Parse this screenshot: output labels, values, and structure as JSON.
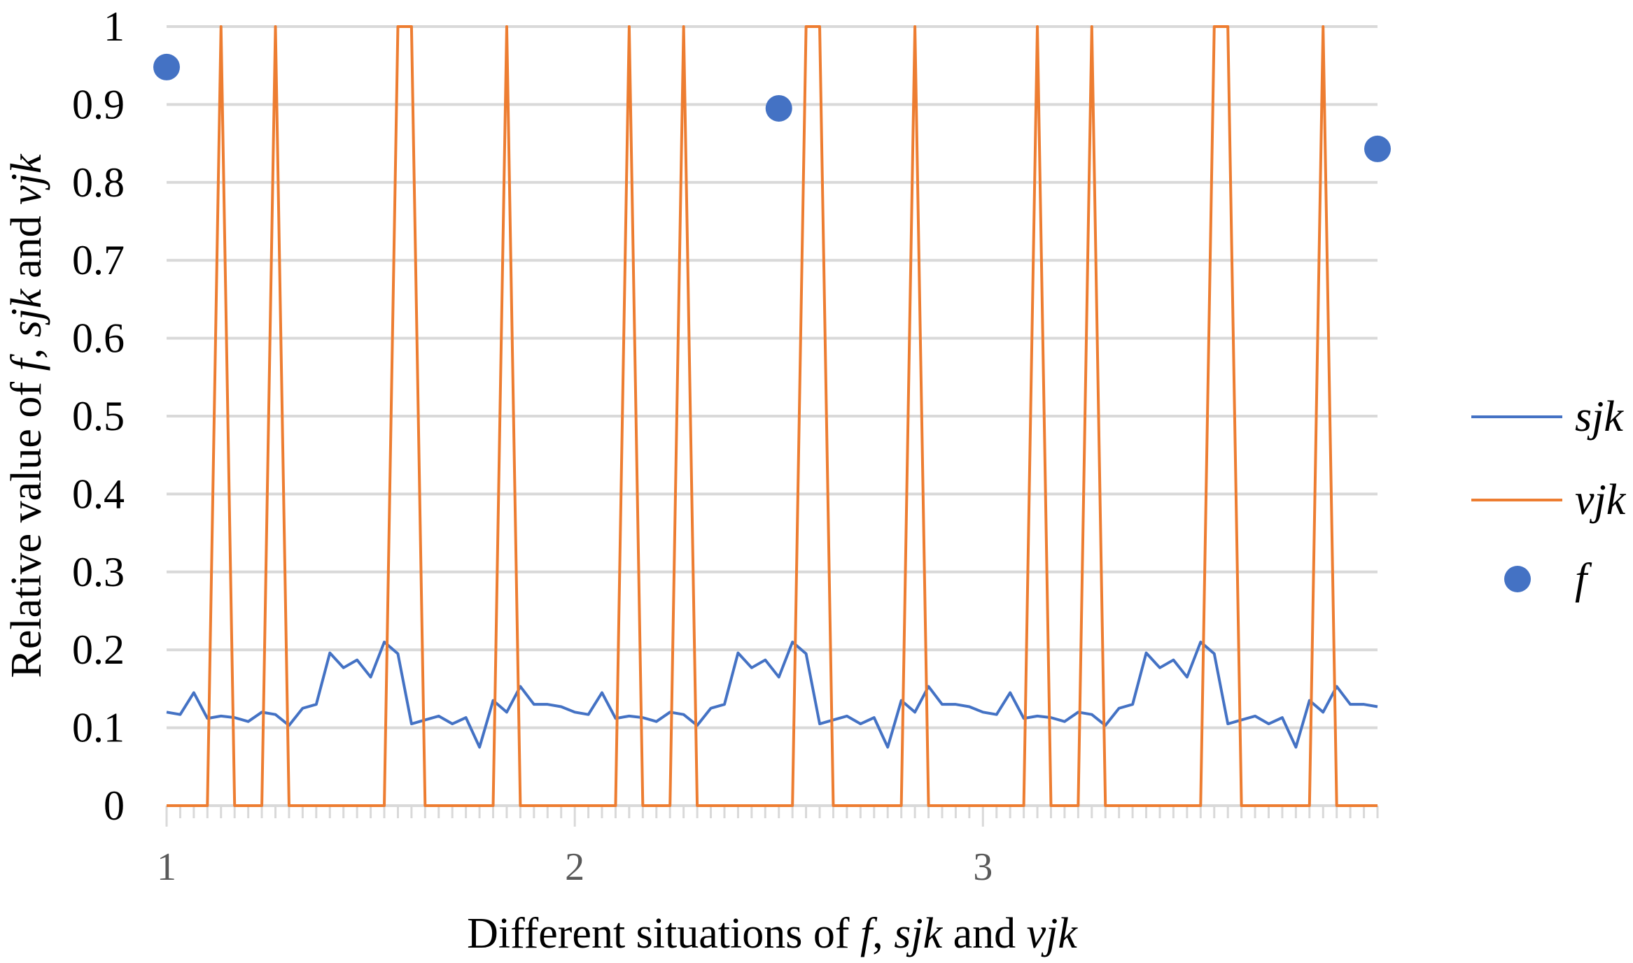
{
  "chart_data": {
    "type": "line",
    "xlabel_parts": [
      "Different situations of ",
      "f",
      ", ",
      "sjk",
      " and ",
      "vjk"
    ],
    "ylabel_parts": [
      "Relative value of ",
      "f",
      ", ",
      "sjk",
      " and ",
      "vjk"
    ],
    "ylim": [
      0,
      1
    ],
    "yticks": [
      "0",
      "0.1",
      "0.2",
      "0.3",
      "0.4",
      "0.5",
      "0.6",
      "0.7",
      "0.8",
      "0.9",
      "1"
    ],
    "xticks": [
      "1",
      "2",
      "3"
    ],
    "grid": true,
    "legend_position": "right",
    "n_points": 90,
    "points_per_situation": 30,
    "series": [
      {
        "name": "sjk",
        "type": "line",
        "color": "#4472C4",
        "values": [
          0.12,
          0.117,
          0.145,
          0.112,
          0.115,
          0.113,
          0.108,
          0.12,
          0.117,
          0.103,
          0.125,
          0.13,
          0.196,
          0.177,
          0.187,
          0.165,
          0.21,
          0.195,
          0.105,
          0.11,
          0.115,
          0.105,
          0.113,
          0.075,
          0.135,
          0.12,
          0.153,
          0.13,
          0.13,
          0.127,
          0.12,
          0.117,
          0.145,
          0.112,
          0.115,
          0.113,
          0.108,
          0.12,
          0.117,
          0.103,
          0.125,
          0.13,
          0.196,
          0.177,
          0.187,
          0.165,
          0.21,
          0.195,
          0.105,
          0.11,
          0.115,
          0.105,
          0.113,
          0.075,
          0.135,
          0.12,
          0.153,
          0.13,
          0.13,
          0.127,
          0.12,
          0.117,
          0.145,
          0.112,
          0.115,
          0.113,
          0.108,
          0.12,
          0.117,
          0.103,
          0.125,
          0.13,
          0.196,
          0.177,
          0.187,
          0.165,
          0.21,
          0.195,
          0.105,
          0.11,
          0.115,
          0.105,
          0.113,
          0.075,
          0.135,
          0.12,
          0.153,
          0.13,
          0.13,
          0.127
        ]
      },
      {
        "name": "vjk",
        "type": "line",
        "color": "#ED7D31",
        "values": [
          0,
          0,
          0,
          0,
          1,
          0,
          0,
          0,
          1,
          0,
          0,
          0,
          0,
          0,
          0,
          0,
          0,
          1,
          1,
          0,
          0,
          0,
          0,
          0,
          0,
          1,
          0,
          0,
          0,
          0,
          0,
          0,
          0,
          0,
          1,
          0,
          0,
          0,
          1,
          0,
          0,
          0,
          0,
          0,
          0,
          0,
          0,
          1,
          1,
          0,
          0,
          0,
          0,
          0,
          0,
          1,
          0,
          0,
          0,
          0,
          0,
          0,
          0,
          0,
          1,
          0,
          0,
          0,
          1,
          0,
          0,
          0,
          0,
          0,
          0,
          0,
          0,
          1,
          1,
          0,
          0,
          0,
          0,
          0,
          0,
          1,
          0,
          0,
          0,
          0
        ]
      },
      {
        "name": "f",
        "type": "scatter",
        "color": "#4472C4",
        "x_index": [
          0,
          45,
          89
        ],
        "values": [
          0.948,
          0.895,
          0.843
        ]
      }
    ]
  }
}
